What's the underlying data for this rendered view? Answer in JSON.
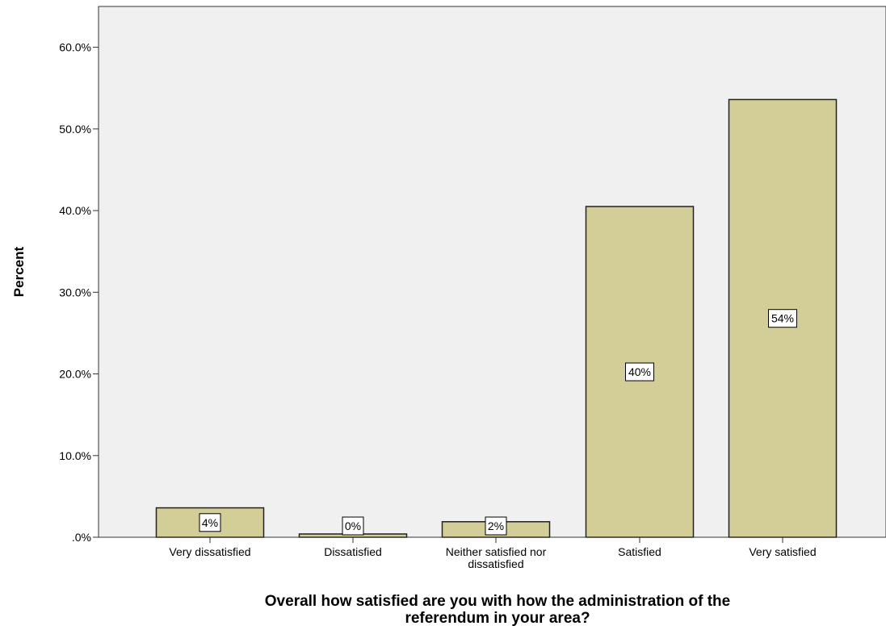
{
  "chart_data": {
    "type": "bar",
    "title": "",
    "xlabel": "Overall how satisfied are you with how the administration of the referendum in your area?",
    "ylabel": "Percent",
    "categories": [
      "Very dissatisfied",
      "Dissatisfied",
      "Neither satisfied nor dissatisfied",
      "Satisfied",
      "Very satisfied"
    ],
    "category_label_lines": [
      [
        "Very dissatisfied"
      ],
      [
        "Dissatisfied"
      ],
      [
        "Neither satisfied nor",
        "dissatisfied"
      ],
      [
        "Satisfied"
      ],
      [
        "Very satisfied"
      ]
    ],
    "xlabel_lines": [
      "Overall how satisfied are you with how the administration of the",
      "referendum in your area?"
    ],
    "values": [
      3.6,
      0.4,
      1.9,
      40.5,
      53.6
    ],
    "data_labels": [
      "4%",
      "0%",
      "2%",
      "40%",
      "54%"
    ],
    "ylim": [
      0,
      65
    ],
    "yticks": [
      0,
      10,
      20,
      30,
      40,
      50,
      60
    ],
    "ytick_labels": [
      ".0%",
      "10.0%",
      "20.0%",
      "30.0%",
      "40.0%",
      "50.0%",
      "60.0%"
    ],
    "grid": false,
    "legend": "none",
    "colors": {
      "plot_background": "#f0f0f0",
      "bar_fill": "#d3ce97",
      "bar_stroke": "#222222",
      "axis": "#333333",
      "label_box_fill": "#ffffff"
    }
  }
}
